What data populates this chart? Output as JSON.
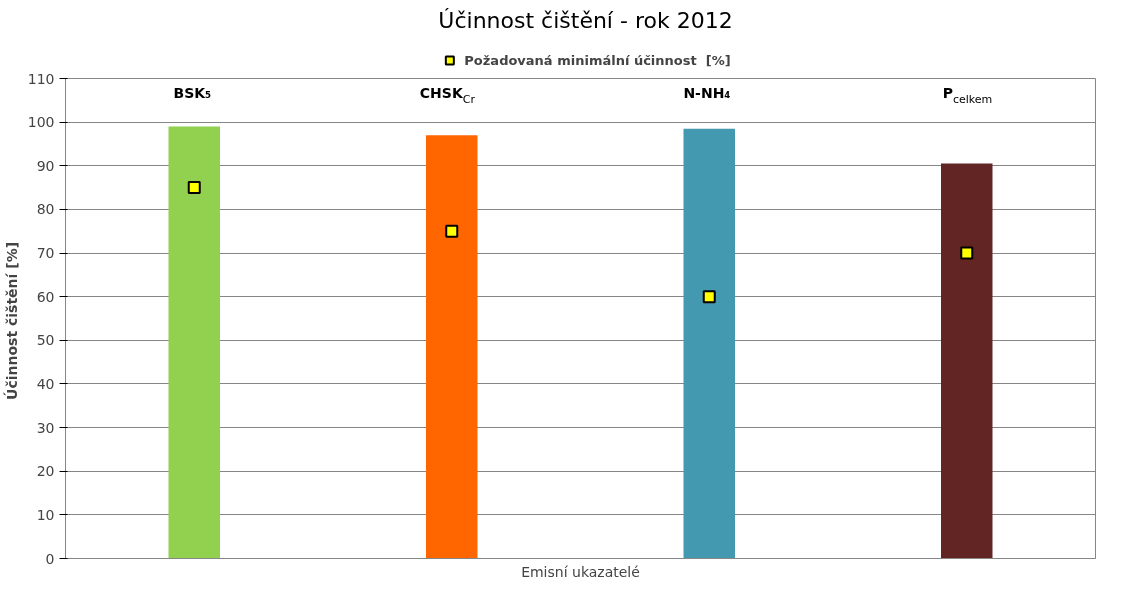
{
  "chart_data": {
    "type": "bar",
    "title": "Účinnost čištění - rok 2012",
    "xlabel": "Emisní ukazatelé",
    "ylabel": "Účinnost čištění  [%]",
    "categories": [
      "BSK₅",
      "CHSK$_{Cr}$",
      "N-NH₄",
      "P$_{celkem}$"
    ],
    "series": [
      {
        "colors": [
          "#92d050",
          "#ff6600",
          "#4399b0",
          "#632523"
        ],
        "values": [
          99,
          97,
          98.5,
          90.5
        ]
      },
      {
        "type": "scatter",
        "name": "Požadovaná minimální účinnost  [%]",
        "color": "#ffff00",
        "marker": "square",
        "values": [
          85,
          75,
          60,
          70
        ]
      }
    ],
    "ylim": [
      0,
      110
    ],
    "yticks": [
      0,
      10,
      20,
      30,
      40,
      50,
      60,
      70,
      80,
      90,
      100,
      110
    ],
    "grid": "y",
    "legend": "top"
  }
}
